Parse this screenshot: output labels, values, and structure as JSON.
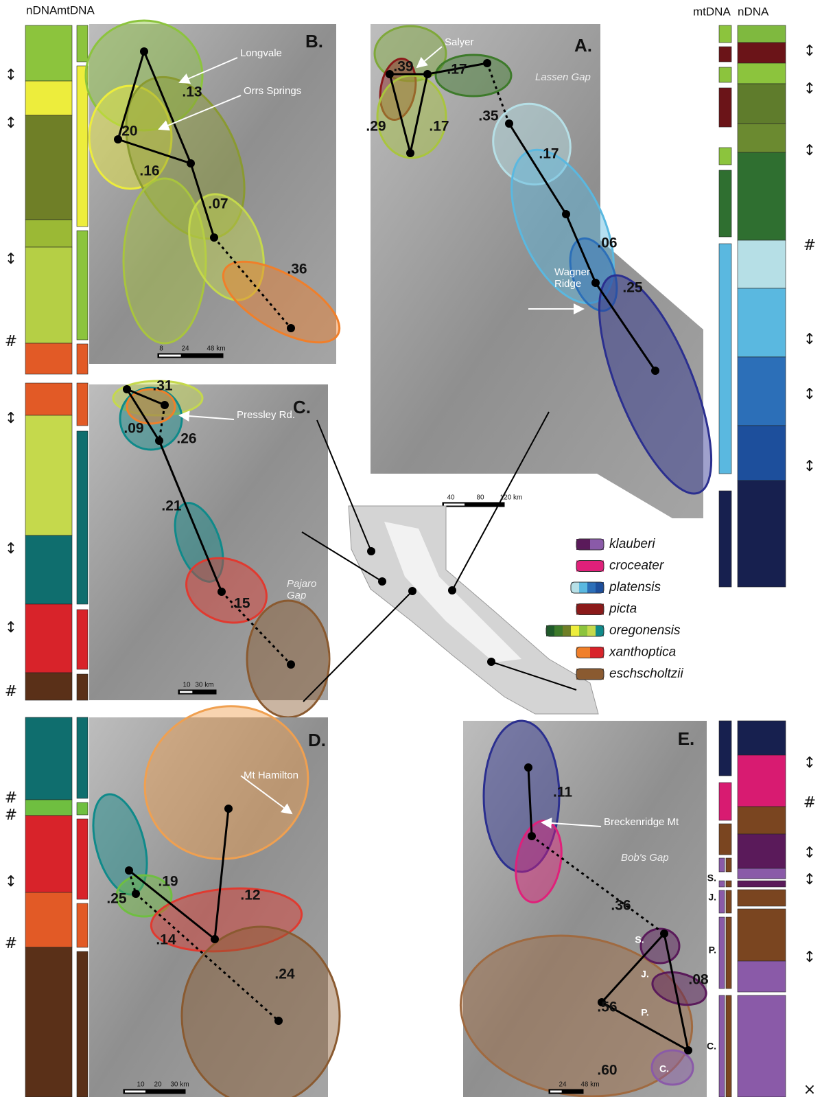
{
  "column_headers": {
    "left": [
      "nDNA",
      "mtDNA"
    ],
    "right": [
      "mtDNA",
      "nDNA"
    ]
  },
  "panels": {
    "A": {
      "letter": "A.",
      "places": [
        "Salyer",
        "Lassen Gap",
        "Wagner Ridge"
      ],
      "distances": [
        ".39",
        ".17",
        ".29",
        ".17",
        ".35",
        ".17",
        ".06",
        ".25"
      ],
      "scale_labels": [
        "40",
        "80",
        "120 km"
      ]
    },
    "B": {
      "letter": "B.",
      "places": [
        "Longvale",
        "Orrs Springs"
      ],
      "distances": [
        ".20",
        ".13",
        ".16",
        ".07",
        ".36"
      ],
      "scale_labels": [
        "8",
        "24",
        "48 km"
      ]
    },
    "C": {
      "letter": "C.",
      "places": [
        "Pressley Rd.",
        "Pajaro Gap"
      ],
      "distances": [
        ".31",
        ".09",
        ".26",
        ".21",
        ".15"
      ],
      "scale_labels": [
        "10",
        "30 km"
      ]
    },
    "D": {
      "letter": "D.",
      "places": [
        "Mt Hamilton"
      ],
      "distances": [
        ".19",
        ".25",
        ".12",
        ".14",
        ".24"
      ],
      "scale_labels": [
        "10",
        "20",
        "30 km"
      ]
    },
    "E": {
      "letter": "E.",
      "places": [
        "Breckenridge Mt",
        "Bob's Gap"
      ],
      "distances": [
        ".11",
        ".36",
        ".56",
        ".08",
        ".60"
      ],
      "scale_labels": [
        "24",
        "48 km"
      ],
      "sites": [
        "S.",
        "J.",
        "P.",
        "C."
      ]
    }
  },
  "legend": [
    "klauberi",
    "croceater",
    "platensis",
    "picta",
    "oregonensis",
    "xanthoptica",
    "eschscholtzii"
  ],
  "column_marks": {
    "left": [
      "↕",
      "↕",
      "↕",
      "#",
      "↕",
      "↕",
      "↕",
      "#",
      "#",
      "#",
      "↕",
      "#"
    ],
    "right": [
      "↕",
      "↕",
      "↕",
      "#",
      "↕",
      "↕",
      "↕",
      "↕",
      "#",
      "↕",
      "↕",
      "↕",
      "×"
    ]
  },
  "side_labels": [
    "S.",
    "J.",
    "P.",
    "C."
  ]
}
